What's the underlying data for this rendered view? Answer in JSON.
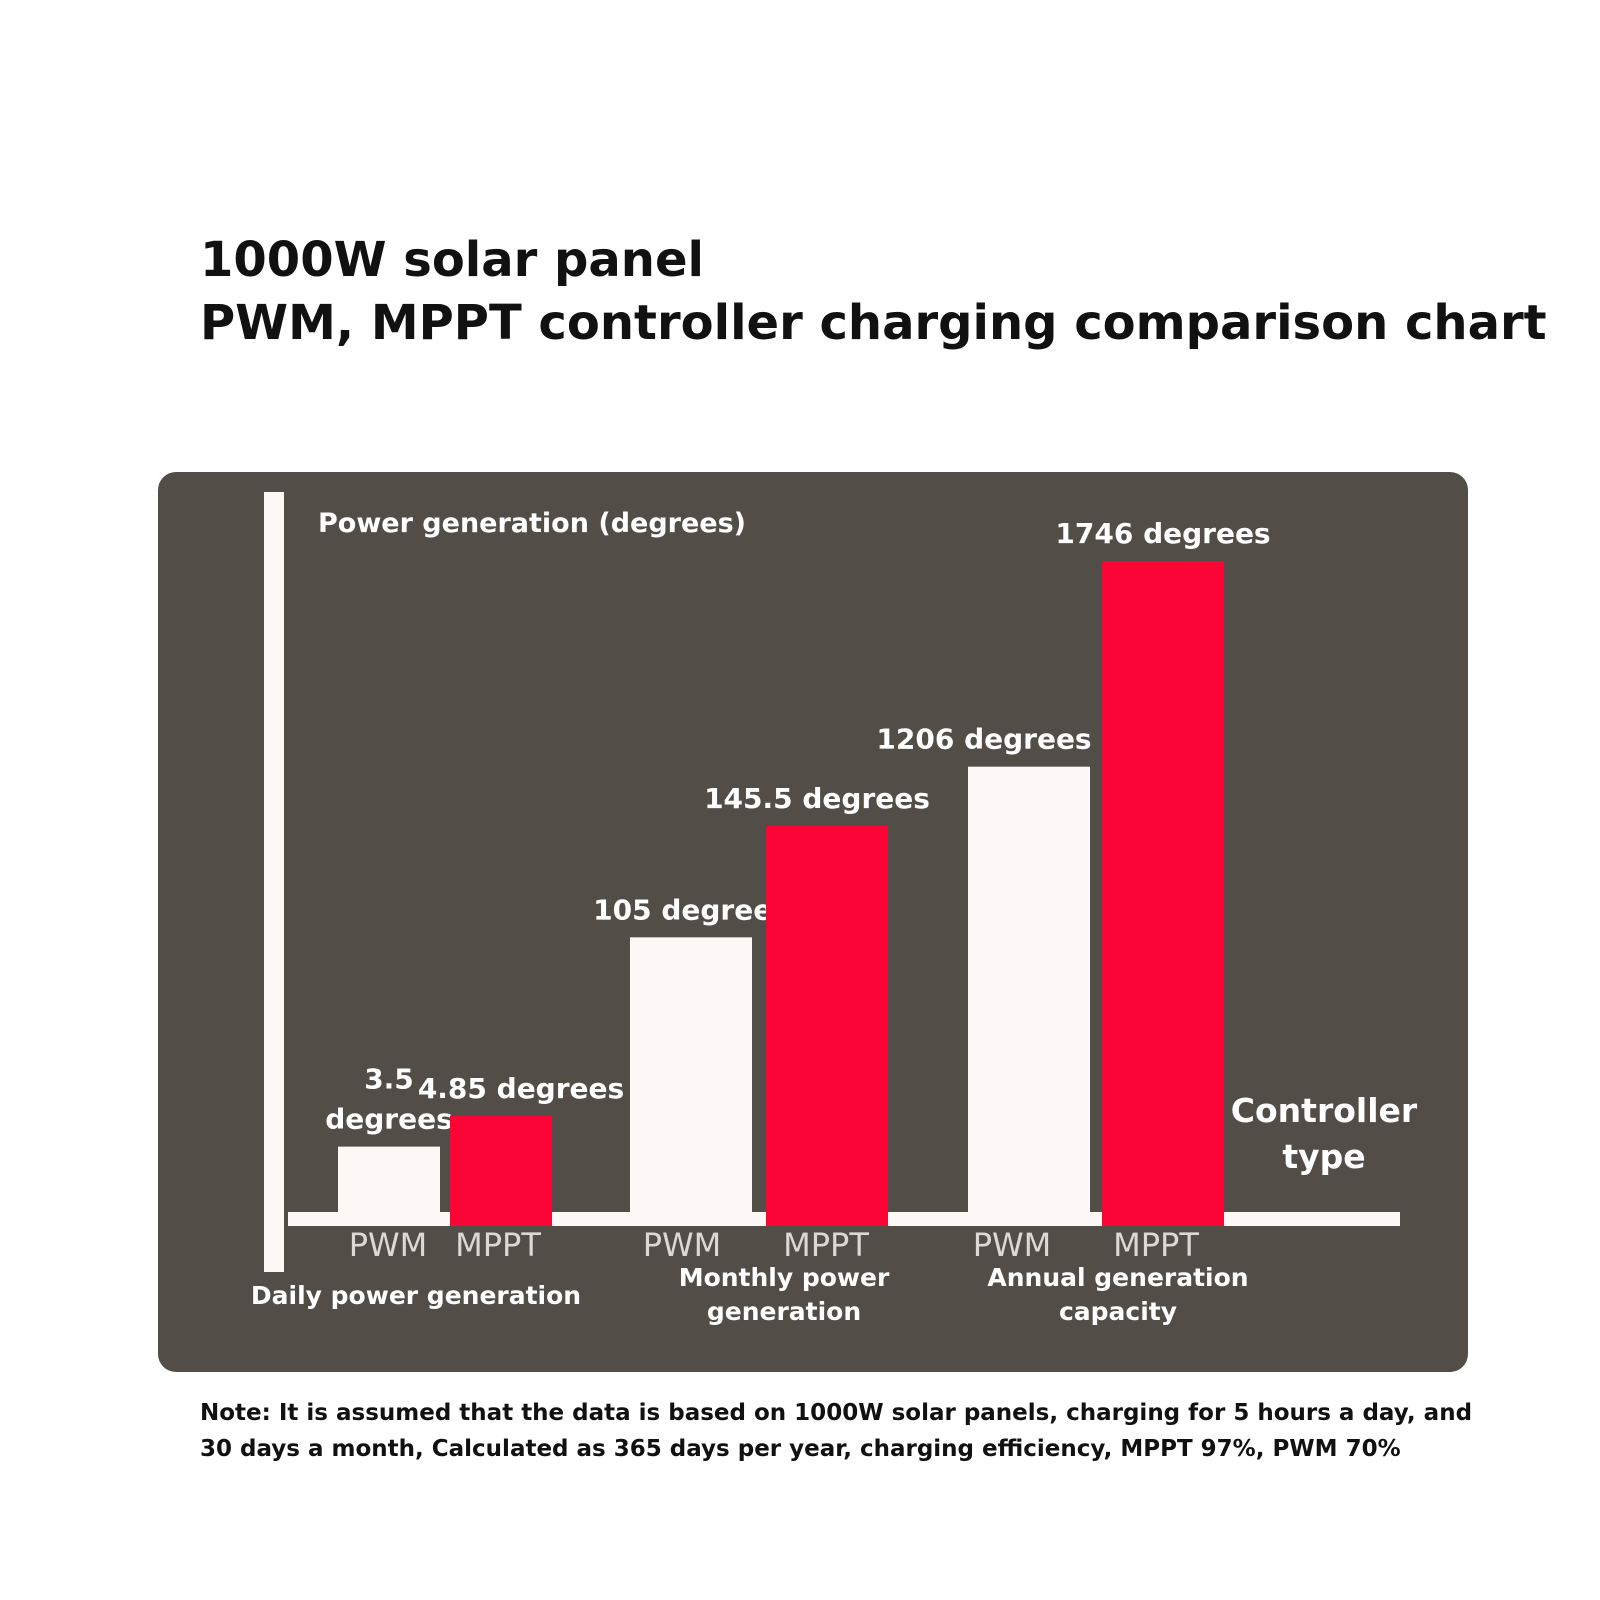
{
  "title_lines": [
    "1000W solar panel",
    "PWM, MPPT controller charging comparison chart"
  ],
  "note_lines": [
    "Note: It is assumed that the data is based on 1000W solar panels, charging for 5 hours a day, and",
    "30 days a month, Calculated as 365 days per year, charging efficiency, MPPT 97%, PWM 70%"
  ],
  "colors": {
    "panel": "#524d47",
    "pwm": "#fdf8f6",
    "mppt": "#fb0537",
    "axis": "#fdf8f6",
    "text": "#ffffff"
  },
  "chart_data": {
    "type": "bar",
    "title": "1000W solar panel PWM, MPPT controller charging comparison chart",
    "ylabel": "Power generation (degrees)",
    "xlabel": "Controller type",
    "grid": false,
    "legend": "none",
    "groups": [
      {
        "name": "Daily power generation",
        "bars": [
          {
            "label": "PWM",
            "value": 3.5,
            "value_label": "3.5 degrees",
            "value_label_lines": [
              "3.5",
              "degrees"
            ]
          },
          {
            "label": "MPPT",
            "value": 4.85,
            "value_label": "4.85 degrees"
          }
        ]
      },
      {
        "name": "Monthly power generation",
        "name_lines": [
          "Monthly power",
          "generation"
        ],
        "bars": [
          {
            "label": "PWM",
            "value": 105,
            "value_label": "105 degrees"
          },
          {
            "label": "MPPT",
            "value": 145.5,
            "value_label": "145.5 degrees"
          }
        ]
      },
      {
        "name": "Annual generation capacity",
        "name_lines": [
          "Annual generation",
          "capacity"
        ],
        "bars": [
          {
            "label": "PWM",
            "value": 1206,
            "value_label": "1206 degrees"
          },
          {
            "label": "MPPT",
            "value": 1746,
            "value_label": "1746 degrees"
          }
        ]
      }
    ],
    "xlabel_lines": [
      "Controller",
      "type"
    ]
  }
}
